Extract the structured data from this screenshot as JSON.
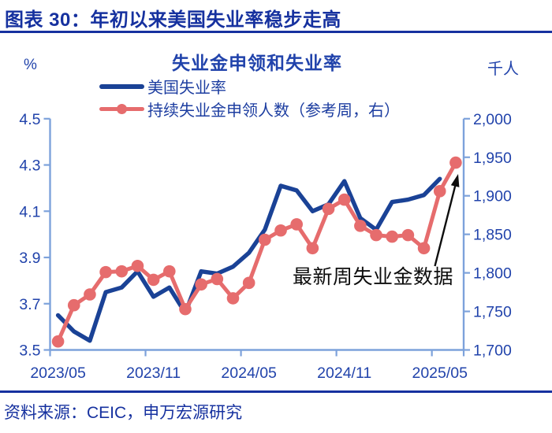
{
  "header": {
    "title": "图表 30：年初以来美国失业率稳步走高"
  },
  "chart": {
    "title": "失业金申领和失业率",
    "left_axis_unit": "%",
    "right_axis_unit": "千人",
    "legend": [
      {
        "label": "美国失业率"
      },
      {
        "label": "持续失业金申领人数（参考周，右）"
      }
    ],
    "annotation": "最新周失业金数据"
  },
  "footer": {
    "source": "资料来源：CEIC，申万宏源研究"
  },
  "colors": {
    "header_blue": "#16319F",
    "label_blue": "#2143AB",
    "line_blue": "#1A4296",
    "line_red": "#E66C6D",
    "axis_light_blue": "#7DA2DB",
    "annotation_black": "#0D0D0D"
  },
  "chart_data": {
    "type": "line",
    "title": "失业金申领和失业率",
    "grid": false,
    "legend_position": "top",
    "categories": [
      "2023/05",
      "2023/06",
      "2023/07",
      "2023/08",
      "2023/09",
      "2023/10",
      "2023/11",
      "2023/12",
      "2024/01",
      "2024/02",
      "2024/03",
      "2024/04",
      "2024/05",
      "2024/06",
      "2024/07",
      "2024/08",
      "2024/09",
      "2024/10",
      "2024/11",
      "2024/12",
      "2025/01",
      "2025/02",
      "2025/03",
      "2025/04",
      "2025/05",
      "最新周"
    ],
    "x_tick_labels": [
      "2023/05",
      "2023/11",
      "2024/05",
      "2024/11",
      "2025/05"
    ],
    "left_axis": {
      "unit": "%",
      "min": 3.5,
      "max": 4.5,
      "tick_step": 0.2,
      "tick_labels": [
        "4.5",
        "4.3",
        "4.1",
        "3.9",
        "3.7",
        "3.5"
      ]
    },
    "right_axis": {
      "unit": "千人",
      "min": 1700,
      "max": 2000,
      "tick_step": 50,
      "tick_labels": [
        "2,000",
        "1,950",
        "1,900",
        "1,850",
        "1,800",
        "1,750",
        "1,700"
      ]
    },
    "series": [
      {
        "name": "美国失业率",
        "axis": "left",
        "color": "#1A4296",
        "marker": "none",
        "values": [
          3.65,
          3.58,
          3.54,
          3.75,
          3.77,
          3.84,
          3.73,
          3.77,
          3.66,
          3.84,
          3.83,
          3.86,
          3.92,
          4.02,
          4.21,
          4.19,
          4.1,
          4.13,
          4.23,
          4.07,
          4.02,
          4.14,
          4.15,
          4.17,
          4.24
        ]
      },
      {
        "name": "持续失业金申领人数（参考周，右）",
        "axis": "right",
        "color": "#E66C6D",
        "marker": "circle",
        "values": [
          1711,
          1758,
          1772,
          1801,
          1802,
          1809,
          1791,
          1802,
          1753,
          1785,
          1792,
          1767,
          1787,
          1843,
          1855,
          1863,
          1832,
          1883,
          1895,
          1861,
          1849,
          1847,
          1849,
          1832,
          1906,
          1943
        ]
      }
    ],
    "annotation": {
      "text": "最新周失业金数据",
      "points_to_value": 1943
    }
  }
}
